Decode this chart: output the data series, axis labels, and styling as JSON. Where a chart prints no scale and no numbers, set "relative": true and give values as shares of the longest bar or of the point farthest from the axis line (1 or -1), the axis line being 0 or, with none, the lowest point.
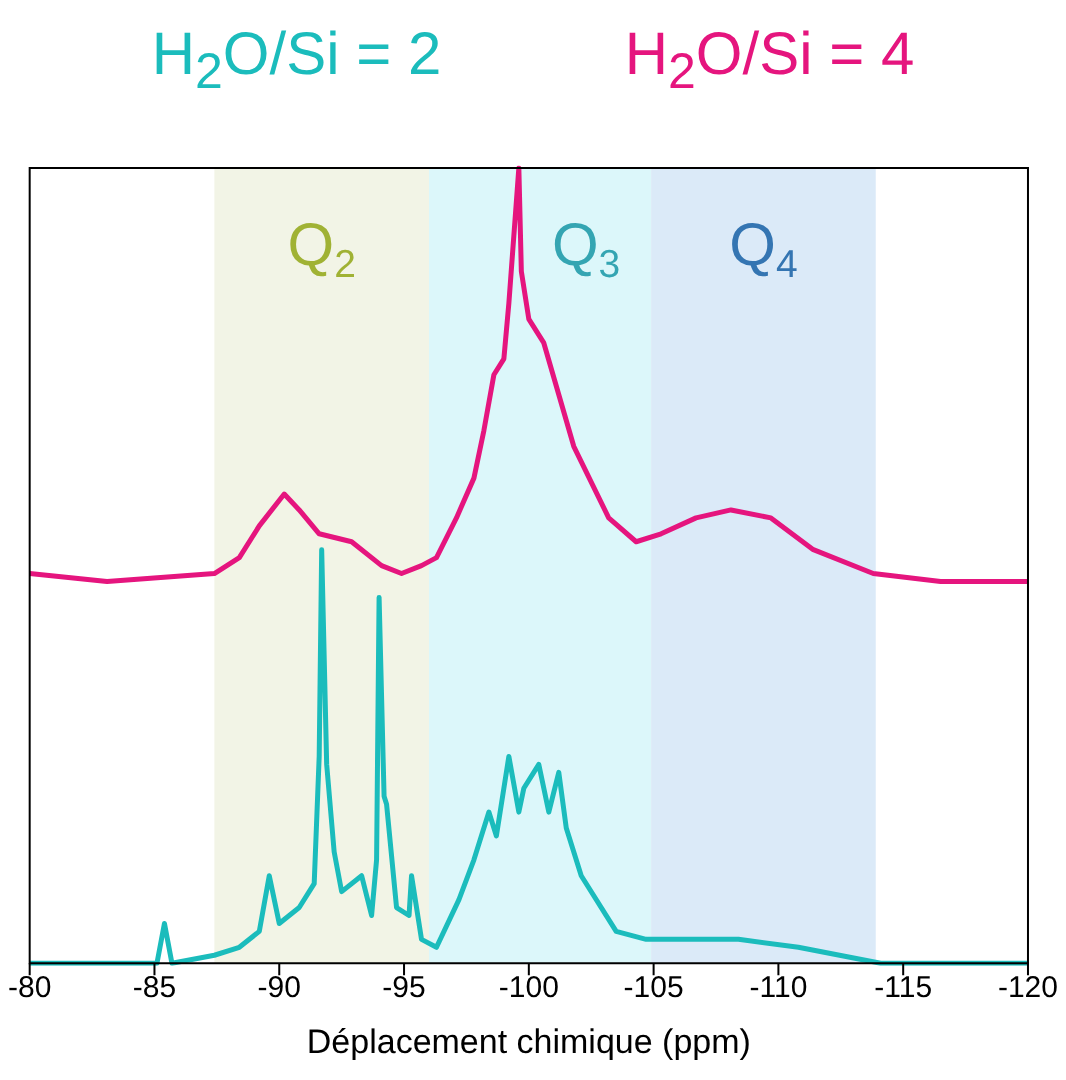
{
  "chart_data": {
    "type": "line",
    "relative": true,
    "xlabel": "Déplacement chimique (ppm)",
    "xlim": [
      -80,
      -120
    ],
    "xticks": [
      -80,
      -85,
      -90,
      -95,
      -100,
      -105,
      -110,
      -115,
      -120
    ],
    "tick_labels": "x",
    "grid": false,
    "legend": "top",
    "marker": "none",
    "line_style": "solid",
    "bands": [
      {
        "axis": "x",
        "from": -87.4,
        "to": -96,
        "label": "Q$_{2}$",
        "color": "#f2f4e6"
      },
      {
        "axis": "x",
        "from": -96,
        "to": -104.9,
        "label": "Q$_{3}$",
        "color": "#dcf7fa"
      },
      {
        "axis": "x",
        "from": -104.9,
        "to": -113.9,
        "label": "Q$_{4}$",
        "color": "#dbeaf8"
      }
    ],
    "series": [
      {
        "name": "H$_{2}$O/Si = 2",
        "color": "#1bbcbc",
        "x": [
          -80,
          -83.1,
          -85.1,
          -85.4,
          -85.7,
          -87.4,
          -88.4,
          -89.2,
          -89.6,
          -90.0,
          -90.8,
          -91.4,
          -91.6,
          -91.7,
          -91.9,
          -92.2,
          -92.5,
          -93.3,
          -93.7,
          -93.9,
          -94.0,
          -94.2,
          -94.3,
          -94.7,
          -95.2,
          -95.3,
          -95.7,
          -96.3,
          -97.2,
          -97.8,
          -98.4,
          -98.7,
          -99.2,
          -99.6,
          -99.8,
          -100.4,
          -100.8,
          -101.2,
          -101.5,
          -102.1,
          -103.5,
          -104.7,
          -105.9,
          -108.4,
          -110.8,
          -114.1,
          -120
        ],
        "values": [
          0,
          0,
          0,
          0.05,
          0,
          0.01,
          0.02,
          0.04,
          0.11,
          0.05,
          0.07,
          0.1,
          0.26,
          0.52,
          0.25,
          0.14,
          0.09,
          0.11,
          0.06,
          0.13,
          0.46,
          0.21,
          0.2,
          0.07,
          0.06,
          0.11,
          0.03,
          0.02,
          0.08,
          0.13,
          0.19,
          0.16,
          0.26,
          0.19,
          0.22,
          0.25,
          0.19,
          0.24,
          0.17,
          0.11,
          0.04,
          0.03,
          0.03,
          0.03,
          0.02,
          0,
          0
        ]
      },
      {
        "name": "H$_{2}$O/Si = 4",
        "color": "#e5157e",
        "x": [
          -80,
          -83.1,
          -87.4,
          -88.4,
          -89.2,
          -90.2,
          -90.8,
          -91.6,
          -92.9,
          -94.1,
          -94.9,
          -95.7,
          -96.3,
          -97.1,
          -97.8,
          -98.2,
          -98.6,
          -99.0,
          -99.2,
          -99.6,
          -99.7,
          -100.0,
          -100.6,
          -101.8,
          -103.2,
          -104.3,
          -105.3,
          -106.7,
          -108.1,
          -109.7,
          -111.4,
          -113.8,
          -116.5,
          -120
        ],
        "values": [
          0.49,
          0.48,
          0.49,
          0.51,
          0.55,
          0.59,
          0.57,
          0.54,
          0.53,
          0.5,
          0.49,
          0.5,
          0.51,
          0.56,
          0.61,
          0.67,
          0.74,
          0.76,
          0.83,
          1,
          0.87,
          0.81,
          0.78,
          0.65,
          0.56,
          0.53,
          0.54,
          0.56,
          0.57,
          0.56,
          0.52,
          0.49,
          0.48,
          0.48
        ]
      }
    ]
  }
}
